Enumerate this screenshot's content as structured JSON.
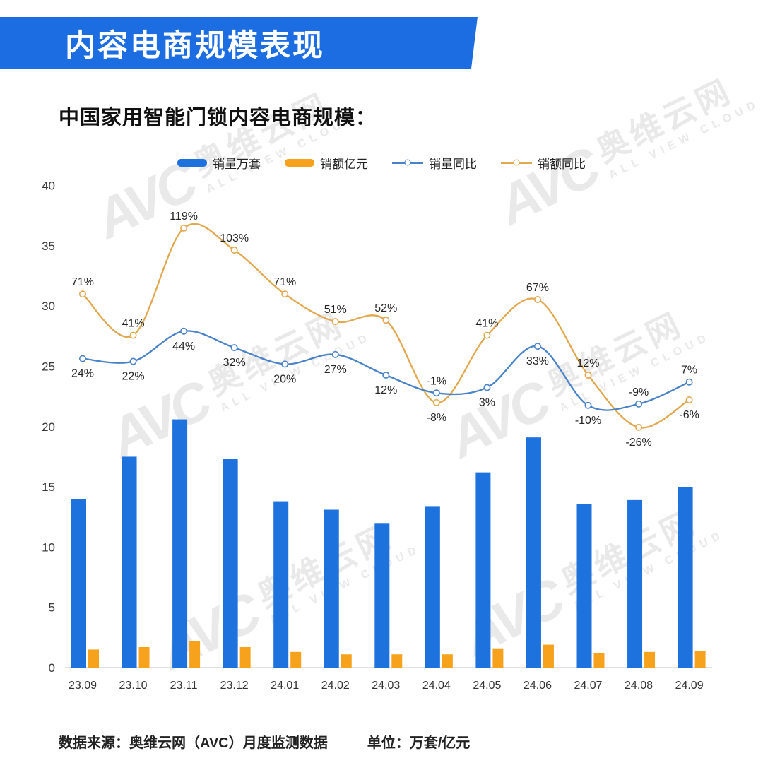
{
  "header": {
    "title": "内容电商规模表现"
  },
  "subtitle": "中国家用智能门锁内容电商规模：",
  "legend": [
    {
      "label": "销量万套",
      "type": "bar",
      "color": "#1e72dd"
    },
    {
      "label": "销额亿元",
      "type": "bar",
      "color": "#f7a21c"
    },
    {
      "label": "销量同比",
      "type": "line",
      "color": "#4a82c8"
    },
    {
      "label": "销额同比",
      "type": "line",
      "color": "#e2a84f"
    }
  ],
  "watermark": {
    "logo": "AVC",
    "name": "奥维云网",
    "sub": "ALL VIEW CLOUD"
  },
  "footer": {
    "source": "数据来源：奥维云网（AVC）月度监测数据",
    "unit": "单位：万套/亿元"
  },
  "chart_data": {
    "type": "bar+line",
    "title": "中国家用智能门锁内容电商规模",
    "categories": [
      "23.09",
      "23.10",
      "23.11",
      "23.12",
      "24.01",
      "24.02",
      "24.03",
      "24.04",
      "24.05",
      "24.06",
      "24.07",
      "24.08",
      "24.09"
    ],
    "series": [
      {
        "name": "销量万套",
        "type": "bar",
        "color": "#1e72dd",
        "values": [
          14.0,
          17.5,
          20.6,
          17.3,
          13.8,
          13.1,
          12.0,
          13.4,
          16.2,
          19.1,
          13.6,
          13.9,
          15.0
        ]
      },
      {
        "name": "销额亿元",
        "type": "bar",
        "color": "#f7a21c",
        "values": [
          1.5,
          1.7,
          2.2,
          1.7,
          1.3,
          1.1,
          1.1,
          1.1,
          1.6,
          1.9,
          1.2,
          1.3,
          1.4
        ]
      },
      {
        "name": "销量同比",
        "type": "line",
        "color": "#4a82c8",
        "unit": "%",
        "values": [
          24,
          22,
          44,
          32,
          20,
          27,
          12,
          -1,
          3,
          33,
          -10,
          -9,
          7
        ],
        "labels": [
          "24%",
          "22%",
          "44%",
          "32%",
          "20%",
          "27%",
          "12%",
          "-1%",
          "3%",
          "33%",
          "-10%",
          "-9%",
          "7%"
        ],
        "label_pos": [
          "below",
          "below",
          "below",
          "below",
          "below",
          "below",
          "below",
          "above",
          "below",
          "below",
          "below",
          "above",
          "above"
        ]
      },
      {
        "name": "销额同比",
        "type": "line",
        "color": "#e2a84f",
        "unit": "%",
        "values": [
          71,
          41,
          119,
          103,
          71,
          51,
          52,
          -8,
          41,
          67,
          12,
          -26,
          -6
        ],
        "labels": [
          "71%",
          "41%",
          "119%",
          "103%",
          "71%",
          "51%",
          "52%",
          "-8%",
          "41%",
          "67%",
          "12%",
          "-26%",
          "-6%"
        ],
        "label_pos": [
          "above",
          "above",
          "above",
          "above",
          "above",
          "above",
          "above",
          "below",
          "above",
          "above",
          "above",
          "below",
          "below"
        ]
      }
    ],
    "y_axis": {
      "min": 0,
      "max": 40,
      "step": 5
    },
    "secondary_axis": {
      "axis_value_at_0pct": 22.9,
      "axis_units_per_pct": 0.114,
      "visible": false
    },
    "grid": false,
    "legend_position": "top"
  }
}
